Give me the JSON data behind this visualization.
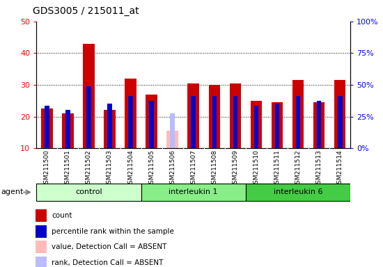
{
  "title": "GDS3005 / 215011_at",
  "samples": [
    "GSM211500",
    "GSM211501",
    "GSM211502",
    "GSM211503",
    "GSM211504",
    "GSM211505",
    "GSM211506",
    "GSM211507",
    "GSM211508",
    "GSM211509",
    "GSM211510",
    "GSM211511",
    "GSM211512",
    "GSM211513",
    "GSM211514"
  ],
  "count_values": [
    22.5,
    21.0,
    43.0,
    22.0,
    32.0,
    27.0,
    null,
    30.5,
    30.0,
    30.5,
    25.0,
    24.5,
    31.5,
    24.5,
    31.5
  ],
  "rank_values": [
    23.5,
    22.0,
    29.5,
    24.0,
    26.5,
    25.0,
    null,
    26.5,
    26.5,
    26.5,
    23.5,
    24.0,
    26.5,
    25.0,
    26.5
  ],
  "absent_count": [
    null,
    null,
    null,
    null,
    null,
    null,
    15.5,
    null,
    null,
    null,
    null,
    null,
    null,
    null,
    null
  ],
  "absent_rank": [
    null,
    null,
    null,
    null,
    null,
    null,
    21.0,
    null,
    null,
    null,
    null,
    null,
    null,
    null,
    null
  ],
  "groups": [
    {
      "label": "control",
      "start": 0,
      "end": 5,
      "color": "#ccffcc"
    },
    {
      "label": "interleukin 1",
      "start": 5,
      "end": 10,
      "color": "#88ee88"
    },
    {
      "label": "interleukin 6",
      "start": 10,
      "end": 15,
      "color": "#44cc44"
    }
  ],
  "ylim_left": [
    10,
    50
  ],
  "ylim_right": [
    0,
    100
  ],
  "yticks_left": [
    10,
    20,
    30,
    40,
    50
  ],
  "yticks_right": [
    0,
    25,
    50,
    75,
    100
  ],
  "bar_color_count": "#cc0000",
  "bar_color_rank": "#0000cc",
  "bar_color_absent_count": "#ffbbbb",
  "bar_color_absent_rank": "#bbbbff",
  "bar_width": 0.55,
  "rank_bar_width": 0.22,
  "plot_bg": "#ffffff",
  "xtick_bg": "#d0d0d0",
  "legend_items": [
    {
      "color": "#cc0000",
      "label": "count"
    },
    {
      "color": "#0000cc",
      "label": "percentile rank within the sample"
    },
    {
      "color": "#ffbbbb",
      "label": "value, Detection Call = ABSENT"
    },
    {
      "color": "#bbbbff",
      "label": "rank, Detection Call = ABSENT"
    }
  ]
}
